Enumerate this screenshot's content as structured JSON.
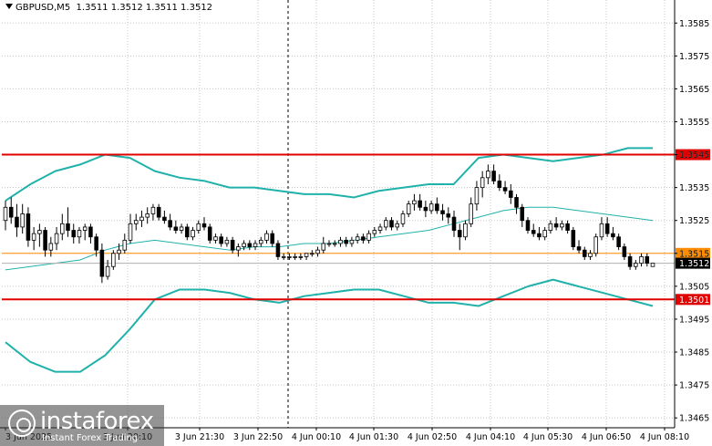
{
  "header": {
    "symbol": "GBPUSD,M5",
    "ohlc": "1.3511 1.3512 1.3511 1.3512"
  },
  "watermark": {
    "brand": "instaforex",
    "tagline": "Instant Forex Trading"
  },
  "colors": {
    "background": "#ffffff",
    "bull_candle": "#ffffff",
    "bear_candle": "#000000",
    "bollinger": "#20b2aa",
    "support_resistance": "#e00000",
    "pivot": "#ff8c00",
    "bid_line": "#b0b0b0",
    "grid": "#c8c8c8"
  },
  "chart_data": {
    "type": "candlestick",
    "title": "GBPUSD,M5",
    "ylim": [
      1.3462,
      1.3592
    ],
    "y_tick_labels": [
      "1.3585",
      "1.3575",
      "1.3565",
      "1.3555",
      "1.3545",
      "1.3535",
      "1.3525",
      "1.3515",
      "1.3505",
      "1.3495",
      "1.3485",
      "1.3475",
      "1.3465"
    ],
    "x_tick_labels": [
      "3 Jun 2025",
      "3 Jun 20:10",
      "3 Jun 21:30",
      "3 Jun 22:50",
      "4 Jun 00:10",
      "4 Jun 01:30",
      "4 Jun 02:50",
      "4 Jun 04:10",
      "4 Jun 05:30",
      "4 Jun 06:50",
      "4 Jun 08:10"
    ],
    "grid": "dotted",
    "levels": [
      {
        "label": "1.3545",
        "value": 1.3545,
        "kind": "resistance"
      },
      {
        "label": "1.3515",
        "value": 1.3515,
        "kind": "pivot"
      },
      {
        "label": "1.3512",
        "value": 1.3512,
        "kind": "bid"
      },
      {
        "label": "1.3501",
        "value": 1.3501,
        "kind": "support"
      }
    ],
    "candles": [
      [
        1.3525,
        1.3531,
        1.3522,
        1.3529
      ],
      [
        1.3529,
        1.3532,
        1.3524,
        1.3526
      ],
      [
        1.3526,
        1.353,
        1.352,
        1.3523
      ],
      [
        1.3523,
        1.353,
        1.3521,
        1.3527
      ],
      [
        1.3527,
        1.3529,
        1.3517,
        1.3519
      ],
      [
        1.3519,
        1.3523,
        1.3516,
        1.3521
      ],
      [
        1.3521,
        1.3524,
        1.3517,
        1.3522
      ],
      [
        1.3522,
        1.3523,
        1.3514,
        1.3516
      ],
      [
        1.3516,
        1.352,
        1.3514,
        1.3518
      ],
      [
        1.3518,
        1.3523,
        1.3516,
        1.3521
      ],
      [
        1.3521,
        1.3527,
        1.3519,
        1.3524
      ],
      [
        1.3524,
        1.3529,
        1.352,
        1.3522
      ],
      [
        1.3522,
        1.3524,
        1.3518,
        1.352
      ],
      [
        1.352,
        1.3523,
        1.3518,
        1.3522
      ],
      [
        1.3522,
        1.3524,
        1.3519,
        1.3523
      ],
      [
        1.3523,
        1.3524,
        1.3518,
        1.352
      ],
      [
        1.352,
        1.3521,
        1.3514,
        1.3516
      ],
      [
        1.3516,
        1.3518,
        1.3506,
        1.3508
      ],
      [
        1.3508,
        1.3513,
        1.3507,
        1.3511
      ],
      [
        1.3511,
        1.3516,
        1.351,
        1.3515
      ],
      [
        1.3515,
        1.3518,
        1.3513,
        1.3516
      ],
      [
        1.3516,
        1.3521,
        1.3515,
        1.3519
      ],
      [
        1.3519,
        1.3527,
        1.3518,
        1.3524
      ],
      [
        1.3524,
        1.3527,
        1.3522,
        1.3525
      ],
      [
        1.3525,
        1.3528,
        1.3523,
        1.3526
      ],
      [
        1.3526,
        1.3529,
        1.3524,
        1.3527
      ],
      [
        1.3527,
        1.353,
        1.3525,
        1.3529
      ],
      [
        1.3529,
        1.353,
        1.3525,
        1.3526
      ],
      [
        1.3526,
        1.3528,
        1.3524,
        1.3525
      ],
      [
        1.3525,
        1.3527,
        1.3522,
        1.3523
      ],
      [
        1.3523,
        1.3525,
        1.3521,
        1.3522
      ],
      [
        1.3522,
        1.3524,
        1.3521,
        1.3523
      ],
      [
        1.3523,
        1.3524,
        1.3519,
        1.352
      ],
      [
        1.352,
        1.3523,
        1.3519,
        1.3522
      ],
      [
        1.3522,
        1.3525,
        1.3521,
        1.3524
      ],
      [
        1.3524,
        1.3526,
        1.3522,
        1.3523
      ],
      [
        1.3523,
        1.3524,
        1.3518,
        1.3519
      ],
      [
        1.3519,
        1.3521,
        1.3518,
        1.352
      ],
      [
        1.352,
        1.3521,
        1.3517,
        1.3518
      ],
      [
        1.3518,
        1.352,
        1.3517,
        1.3519
      ],
      [
        1.3519,
        1.352,
        1.3515,
        1.3516
      ],
      [
        1.3516,
        1.3518,
        1.3514,
        1.3517
      ],
      [
        1.3517,
        1.3519,
        1.3516,
        1.3518
      ],
      [
        1.3518,
        1.3519,
        1.3516,
        1.3517
      ],
      [
        1.3517,
        1.3519,
        1.3516,
        1.3518
      ],
      [
        1.3518,
        1.352,
        1.3517,
        1.3519
      ],
      [
        1.3519,
        1.3522,
        1.3518,
        1.3521
      ],
      [
        1.3521,
        1.3522,
        1.3517,
        1.3518
      ],
      [
        1.3518,
        1.3519,
        1.3513,
        1.3514
      ],
      [
        1.3514,
        1.3515,
        1.3513,
        1.3514
      ],
      [
        1.3514,
        1.3515,
        1.3513,
        1.3514
      ],
      [
        1.3514,
        1.3515,
        1.3513,
        1.3514
      ],
      [
        1.3514,
        1.3515,
        1.3513,
        1.3514
      ],
      [
        1.3514,
        1.3515,
        1.3513,
        1.3515
      ],
      [
        1.3515,
        1.3516,
        1.3514,
        1.3515
      ],
      [
        1.3515,
        1.3517,
        1.3514,
        1.3516
      ],
      [
        1.3516,
        1.352,
        1.3515,
        1.3518
      ],
      [
        1.3518,
        1.3519,
        1.3517,
        1.3518
      ],
      [
        1.3518,
        1.3519,
        1.3517,
        1.3518
      ],
      [
        1.3518,
        1.352,
        1.3517,
        1.3519
      ],
      [
        1.3519,
        1.352,
        1.3517,
        1.3518
      ],
      [
        1.3518,
        1.352,
        1.3517,
        1.3519
      ],
      [
        1.3519,
        1.3521,
        1.3518,
        1.352
      ],
      [
        1.352,
        1.3521,
        1.3518,
        1.3519
      ],
      [
        1.3519,
        1.3522,
        1.3518,
        1.3521
      ],
      [
        1.3521,
        1.3523,
        1.352,
        1.3522
      ],
      [
        1.3522,
        1.3524,
        1.3521,
        1.3523
      ],
      [
        1.3523,
        1.3526,
        1.3522,
        1.3525
      ],
      [
        1.3525,
        1.3526,
        1.3522,
        1.3523
      ],
      [
        1.3523,
        1.3525,
        1.3522,
        1.3524
      ],
      [
        1.3524,
        1.3528,
        1.3523,
        1.3527
      ],
      [
        1.3527,
        1.3531,
        1.3526,
        1.353
      ],
      [
        1.353,
        1.3533,
        1.3528,
        1.3531
      ],
      [
        1.3531,
        1.3533,
        1.3528,
        1.3529
      ],
      [
        1.3529,
        1.3531,
        1.3526,
        1.3528
      ],
      [
        1.3528,
        1.3531,
        1.3527,
        1.353
      ],
      [
        1.353,
        1.3532,
        1.3527,
        1.3528
      ],
      [
        1.3528,
        1.353,
        1.3525,
        1.3527
      ],
      [
        1.3527,
        1.3529,
        1.3524,
        1.3526
      ],
      [
        1.3526,
        1.3528,
        1.352,
        1.3522
      ],
      [
        1.3522,
        1.3524,
        1.3516,
        1.352
      ],
      [
        1.352,
        1.3525,
        1.3519,
        1.3524
      ],
      [
        1.3524,
        1.3532,
        1.3523,
        1.353
      ],
      [
        1.353,
        1.3537,
        1.3528,
        1.3535
      ],
      [
        1.3535,
        1.354,
        1.3532,
        1.3538
      ],
      [
        1.3538,
        1.3542,
        1.3536,
        1.354
      ],
      [
        1.354,
        1.3542,
        1.3536,
        1.3537
      ],
      [
        1.3537,
        1.3539,
        1.3534,
        1.3535
      ],
      [
        1.3535,
        1.3537,
        1.3533,
        1.3534
      ],
      [
        1.3534,
        1.3536,
        1.353,
        1.3532
      ],
      [
        1.3532,
        1.3533,
        1.3527,
        1.3529
      ],
      [
        1.3529,
        1.353,
        1.3523,
        1.3525
      ],
      [
        1.3525,
        1.3526,
        1.3521,
        1.3522
      ],
      [
        1.3522,
        1.3524,
        1.352,
        1.3521
      ],
      [
        1.3521,
        1.3523,
        1.3519,
        1.352
      ],
      [
        1.352,
        1.3523,
        1.3519,
        1.3522
      ],
      [
        1.3522,
        1.3525,
        1.3521,
        1.3524
      ],
      [
        1.3524,
        1.3526,
        1.3522,
        1.3523
      ],
      [
        1.3523,
        1.3525,
        1.3522,
        1.3524
      ],
      [
        1.3524,
        1.3525,
        1.3521,
        1.3522
      ],
      [
        1.3522,
        1.3523,
        1.3516,
        1.3517
      ],
      [
        1.3517,
        1.3519,
        1.3515,
        1.3516
      ],
      [
        1.3516,
        1.3517,
        1.3513,
        1.3514
      ],
      [
        1.3514,
        1.3516,
        1.3513,
        1.3515
      ],
      [
        1.3515,
        1.3521,
        1.3514,
        1.352
      ],
      [
        1.352,
        1.3526,
        1.3519,
        1.3524
      ],
      [
        1.3524,
        1.3526,
        1.352,
        1.3521
      ],
      [
        1.3521,
        1.3523,
        1.3519,
        1.352
      ],
      [
        1.352,
        1.3521,
        1.3516,
        1.3517
      ],
      [
        1.3517,
        1.3518,
        1.3513,
        1.3514
      ],
      [
        1.3514,
        1.3515,
        1.351,
        1.3511
      ],
      [
        1.3511,
        1.3513,
        1.351,
        1.3512
      ],
      [
        1.3512,
        1.3515,
        1.3511,
        1.3514
      ],
      [
        1.3514,
        1.3515,
        1.3511,
        1.3512
      ],
      [
        1.3511,
        1.3512,
        1.3511,
        1.3512
      ]
    ],
    "bollinger": {
      "upper": [
        1.3531,
        1.3536,
        1.354,
        1.3542,
        1.3545,
        1.3544,
        1.354,
        1.3538,
        1.3537,
        1.3535,
        1.3535,
        1.3534,
        1.3533,
        1.3533,
        1.3532,
        1.3534,
        1.3535,
        1.3536,
        1.3536,
        1.3544,
        1.3545,
        1.3544,
        1.3543,
        1.3544,
        1.3545,
        1.3547,
        1.3547
      ],
      "middle": [
        1.351,
        1.3511,
        1.3512,
        1.3513,
        1.3516,
        1.3518,
        1.3519,
        1.3518,
        1.3517,
        1.3516,
        1.3517,
        1.3517,
        1.3518,
        1.3518,
        1.3519,
        1.352,
        1.3521,
        1.3522,
        1.3524,
        1.3526,
        1.3528,
        1.3529,
        1.3529,
        1.3528,
        1.3527,
        1.3526,
        1.3525
      ],
      "lower": [
        1.3488,
        1.3482,
        1.3479,
        1.3479,
        1.3484,
        1.3492,
        1.3501,
        1.3504,
        1.3504,
        1.3503,
        1.3501,
        1.35,
        1.3502,
        1.3503,
        1.3504,
        1.3504,
        1.3502,
        1.35,
        1.35,
        1.3499,
        1.3502,
        1.3505,
        1.3507,
        1.3505,
        1.3503,
        1.3501,
        1.3499
      ]
    }
  }
}
